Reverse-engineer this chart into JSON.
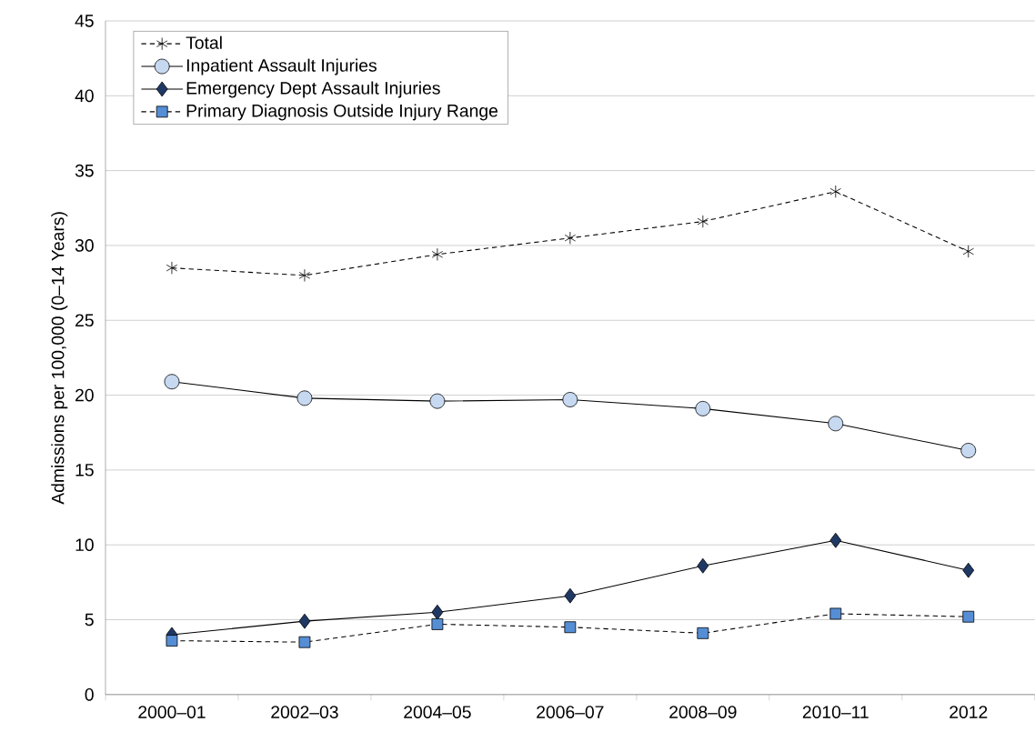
{
  "chart_data": {
    "type": "line",
    "ylabel": "Admissions per 100,000 (0–14 Years)",
    "categories": [
      "2000–01",
      "2002–03",
      "2004–05",
      "2006–07",
      "2008–09",
      "2010–11",
      "2012"
    ],
    "series": [
      {
        "name": "Total",
        "color": "#000000",
        "marker": "cross",
        "line_style": "dashed",
        "values": [
          28.5,
          28.0,
          29.4,
          30.5,
          31.6,
          33.6,
          29.6
        ]
      },
      {
        "name": "Inpatient Assault Injuries",
        "color": "#c6d9f1",
        "marker": "circle",
        "line_style": "solid",
        "values": [
          20.9,
          19.8,
          19.6,
          19.7,
          19.1,
          18.1,
          16.3
        ]
      },
      {
        "name": "Emergency Dept Assault Injuries",
        "color": "#1f3864",
        "marker": "diamond",
        "line_style": "solid",
        "values": [
          4.0,
          4.9,
          5.5,
          6.6,
          8.6,
          10.3,
          8.3
        ]
      },
      {
        "name": "Primary Diagnosis Outside Injury Range",
        "color": "#558ed5",
        "marker": "square",
        "line_style": "dashed",
        "values": [
          3.6,
          3.5,
          4.7,
          4.5,
          4.1,
          5.4,
          5.2
        ]
      }
    ],
    "ylim": [
      0,
      45
    ],
    "yticks": [
      0,
      5,
      10,
      15,
      20,
      25,
      30,
      35,
      40,
      45
    ],
    "grid": "y",
    "legend": "top left"
  }
}
